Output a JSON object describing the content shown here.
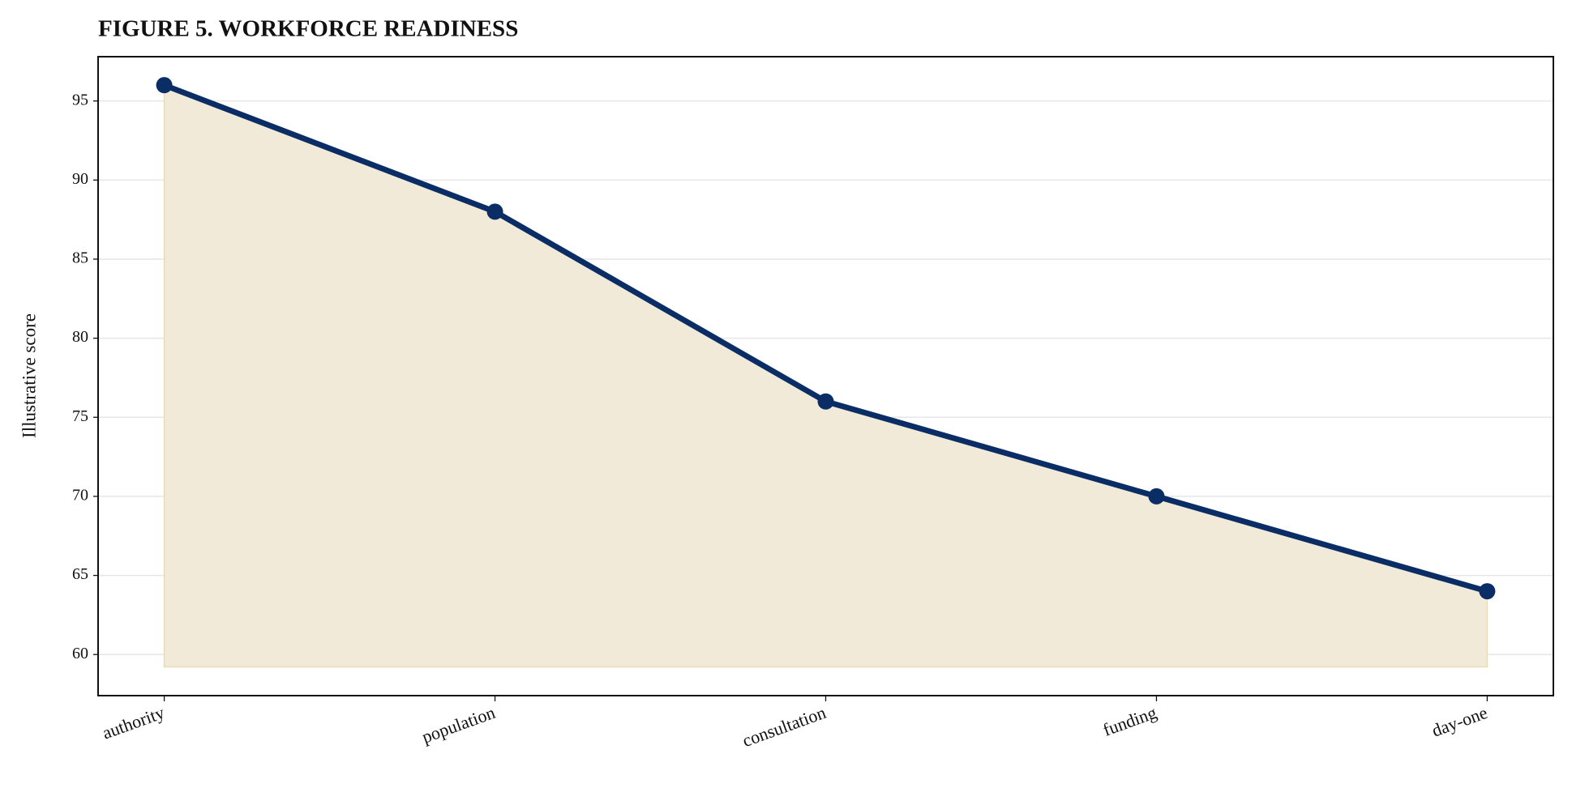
{
  "chart_data": {
    "type": "line",
    "title": "FIGURE 5. WORKFORCE READINESS",
    "y_label": "Illustrative score",
    "categories": [
      "authority",
      "population",
      "consultation",
      "funding",
      "day-one"
    ],
    "series": [
      {
        "name": "Illustrative score",
        "color": "#0a2d66",
        "values": [
          96,
          88,
          76,
          70,
          64
        ]
      }
    ],
    "area_color": "#f2ead9",
    "ylim": [
      57.4,
      97.8
    ],
    "yticks": [
      60,
      65,
      70,
      75,
      80,
      85,
      90,
      95
    ],
    "grid": true
  }
}
